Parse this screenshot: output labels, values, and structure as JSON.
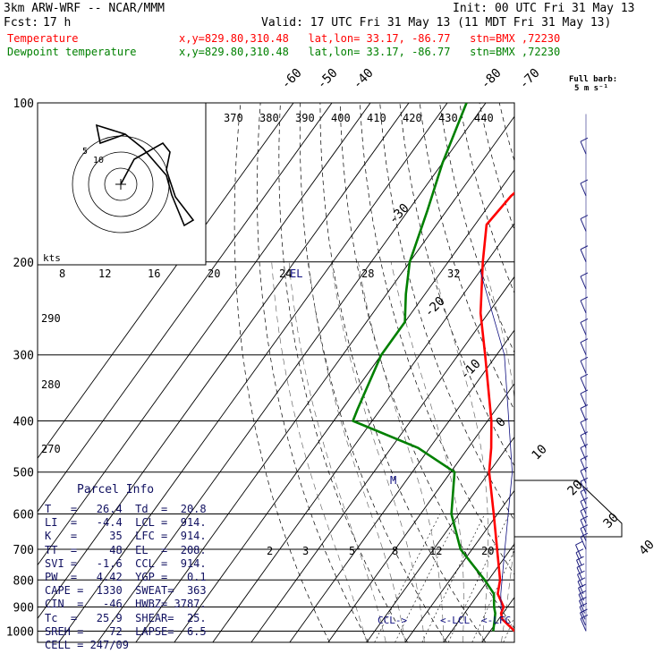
{
  "header": {
    "model": "3km ARW-WRF -- NCAR/MMM",
    "init": "Init: 00 UTC Fri 31 May 13",
    "fcst_label": "Fcst:",
    "fcst_value": "17 h",
    "valid": "Valid: 17 UTC Fri 31 May 13 (11 MDT Fri 31 May 13)",
    "temp_line": "Temperature",
    "dew_line": "Dewpoint temperature",
    "temp_loc": "x,y=829.80,310.48   lat,lon= 33.17, -86.77   stn=BMX ,72230",
    "dew_loc": "x,y=829.80,310.48   lat,lon= 33.17, -86.77   stn=BMX ,72230",
    "temp_color": "#ff0000",
    "dew_color": "#008000"
  },
  "wind_legend": {
    "line1": "Full barb:",
    "line2": "5 m s⁻¹"
  },
  "parcel": {
    "title": "Parcel Info",
    "rows": [
      "T   =   26.4  Td  =  20.8",
      "LI  =   -4.4  LCL =  914.",
      "K   =     35  LFC =  914.",
      "TT  =     48  EL  =  208.",
      "SVI =   -1.6  CCL =  914.",
      "PW  =   4.42  YGP =   0.1",
      "CAPE =  1330  SWEAT=  363",
      "CIN  =   -46  HWBZ= 3787.",
      "Tc  =   25.9  SHEAR=  25.",
      "SREH =    72  LAPSE=  6.5",
      "CELL = 247/09"
    ]
  },
  "levels": {
    "lcl_label": "CCL->",
    "lcl2_label": "<-LCL",
    "lfc_label": "<-LFC",
    "el_label": "EL",
    "m_label": "M"
  },
  "hodograph": {
    "kts_label": "kts",
    "ring_labels": [
      "5",
      "10"
    ]
  },
  "chart_data": {
    "type": "line",
    "title": "",
    "ylabel": "",
    "xlabel": "",
    "pressure_ticks": [
      100,
      200,
      300,
      400,
      500,
      600,
      700,
      800,
      900,
      1000
    ],
    "isotherm_labels": [
      "-80",
      "-70",
      "-60",
      "-50",
      "-40",
      "-30",
      "-20",
      "-10",
      "0",
      "10",
      "20",
      "30",
      "40"
    ],
    "isentrope_labels": [
      "370",
      "380",
      "390",
      "400",
      "410",
      "420",
      "430",
      "440"
    ],
    "mixing_ratio_labels": [
      "2",
      "3",
      "5",
      "8",
      "12",
      "20"
    ],
    "hodo_speed_labels": [
      "8",
      "12",
      "16",
      "20",
      "24",
      "28",
      "32"
    ],
    "dryadiabat_side_labels": [
      "290",
      "280",
      "270"
    ],
    "series": [
      {
        "name": "Temperature",
        "color": "#ff0000",
        "points": [
          [
            1000,
            26.4
          ],
          [
            950,
            21
          ],
          [
            925,
            19.5
          ],
          [
            900,
            19
          ],
          [
            850,
            15
          ],
          [
            800,
            13
          ],
          [
            700,
            6.5
          ],
          [
            600,
            -1
          ],
          [
            500,
            -10
          ],
          [
            450,
            -14
          ],
          [
            400,
            -19
          ],
          [
            300,
            -33
          ],
          [
            250,
            -42
          ],
          [
            200,
            -51
          ],
          [
            170,
            -57
          ],
          [
            150,
            -56
          ],
          [
            120,
            -50
          ],
          [
            100,
            -44
          ]
        ]
      },
      {
        "name": "Dewpoint temperature",
        "color": "#008000",
        "points": [
          [
            1000,
            20.8
          ],
          [
            950,
            19
          ],
          [
            925,
            18
          ],
          [
            900,
            16.5
          ],
          [
            850,
            14
          ],
          [
            800,
            9
          ],
          [
            700,
            -3
          ],
          [
            600,
            -12
          ],
          [
            500,
            -19
          ],
          [
            450,
            -33
          ],
          [
            400,
            -55
          ],
          [
            380,
            -56
          ],
          [
            300,
            -60
          ],
          [
            260,
            -60
          ],
          [
            230,
            -65
          ],
          [
            200,
            -70
          ],
          [
            160,
            -75
          ],
          [
            130,
            -80
          ],
          [
            100,
            -85
          ]
        ]
      }
    ]
  }
}
